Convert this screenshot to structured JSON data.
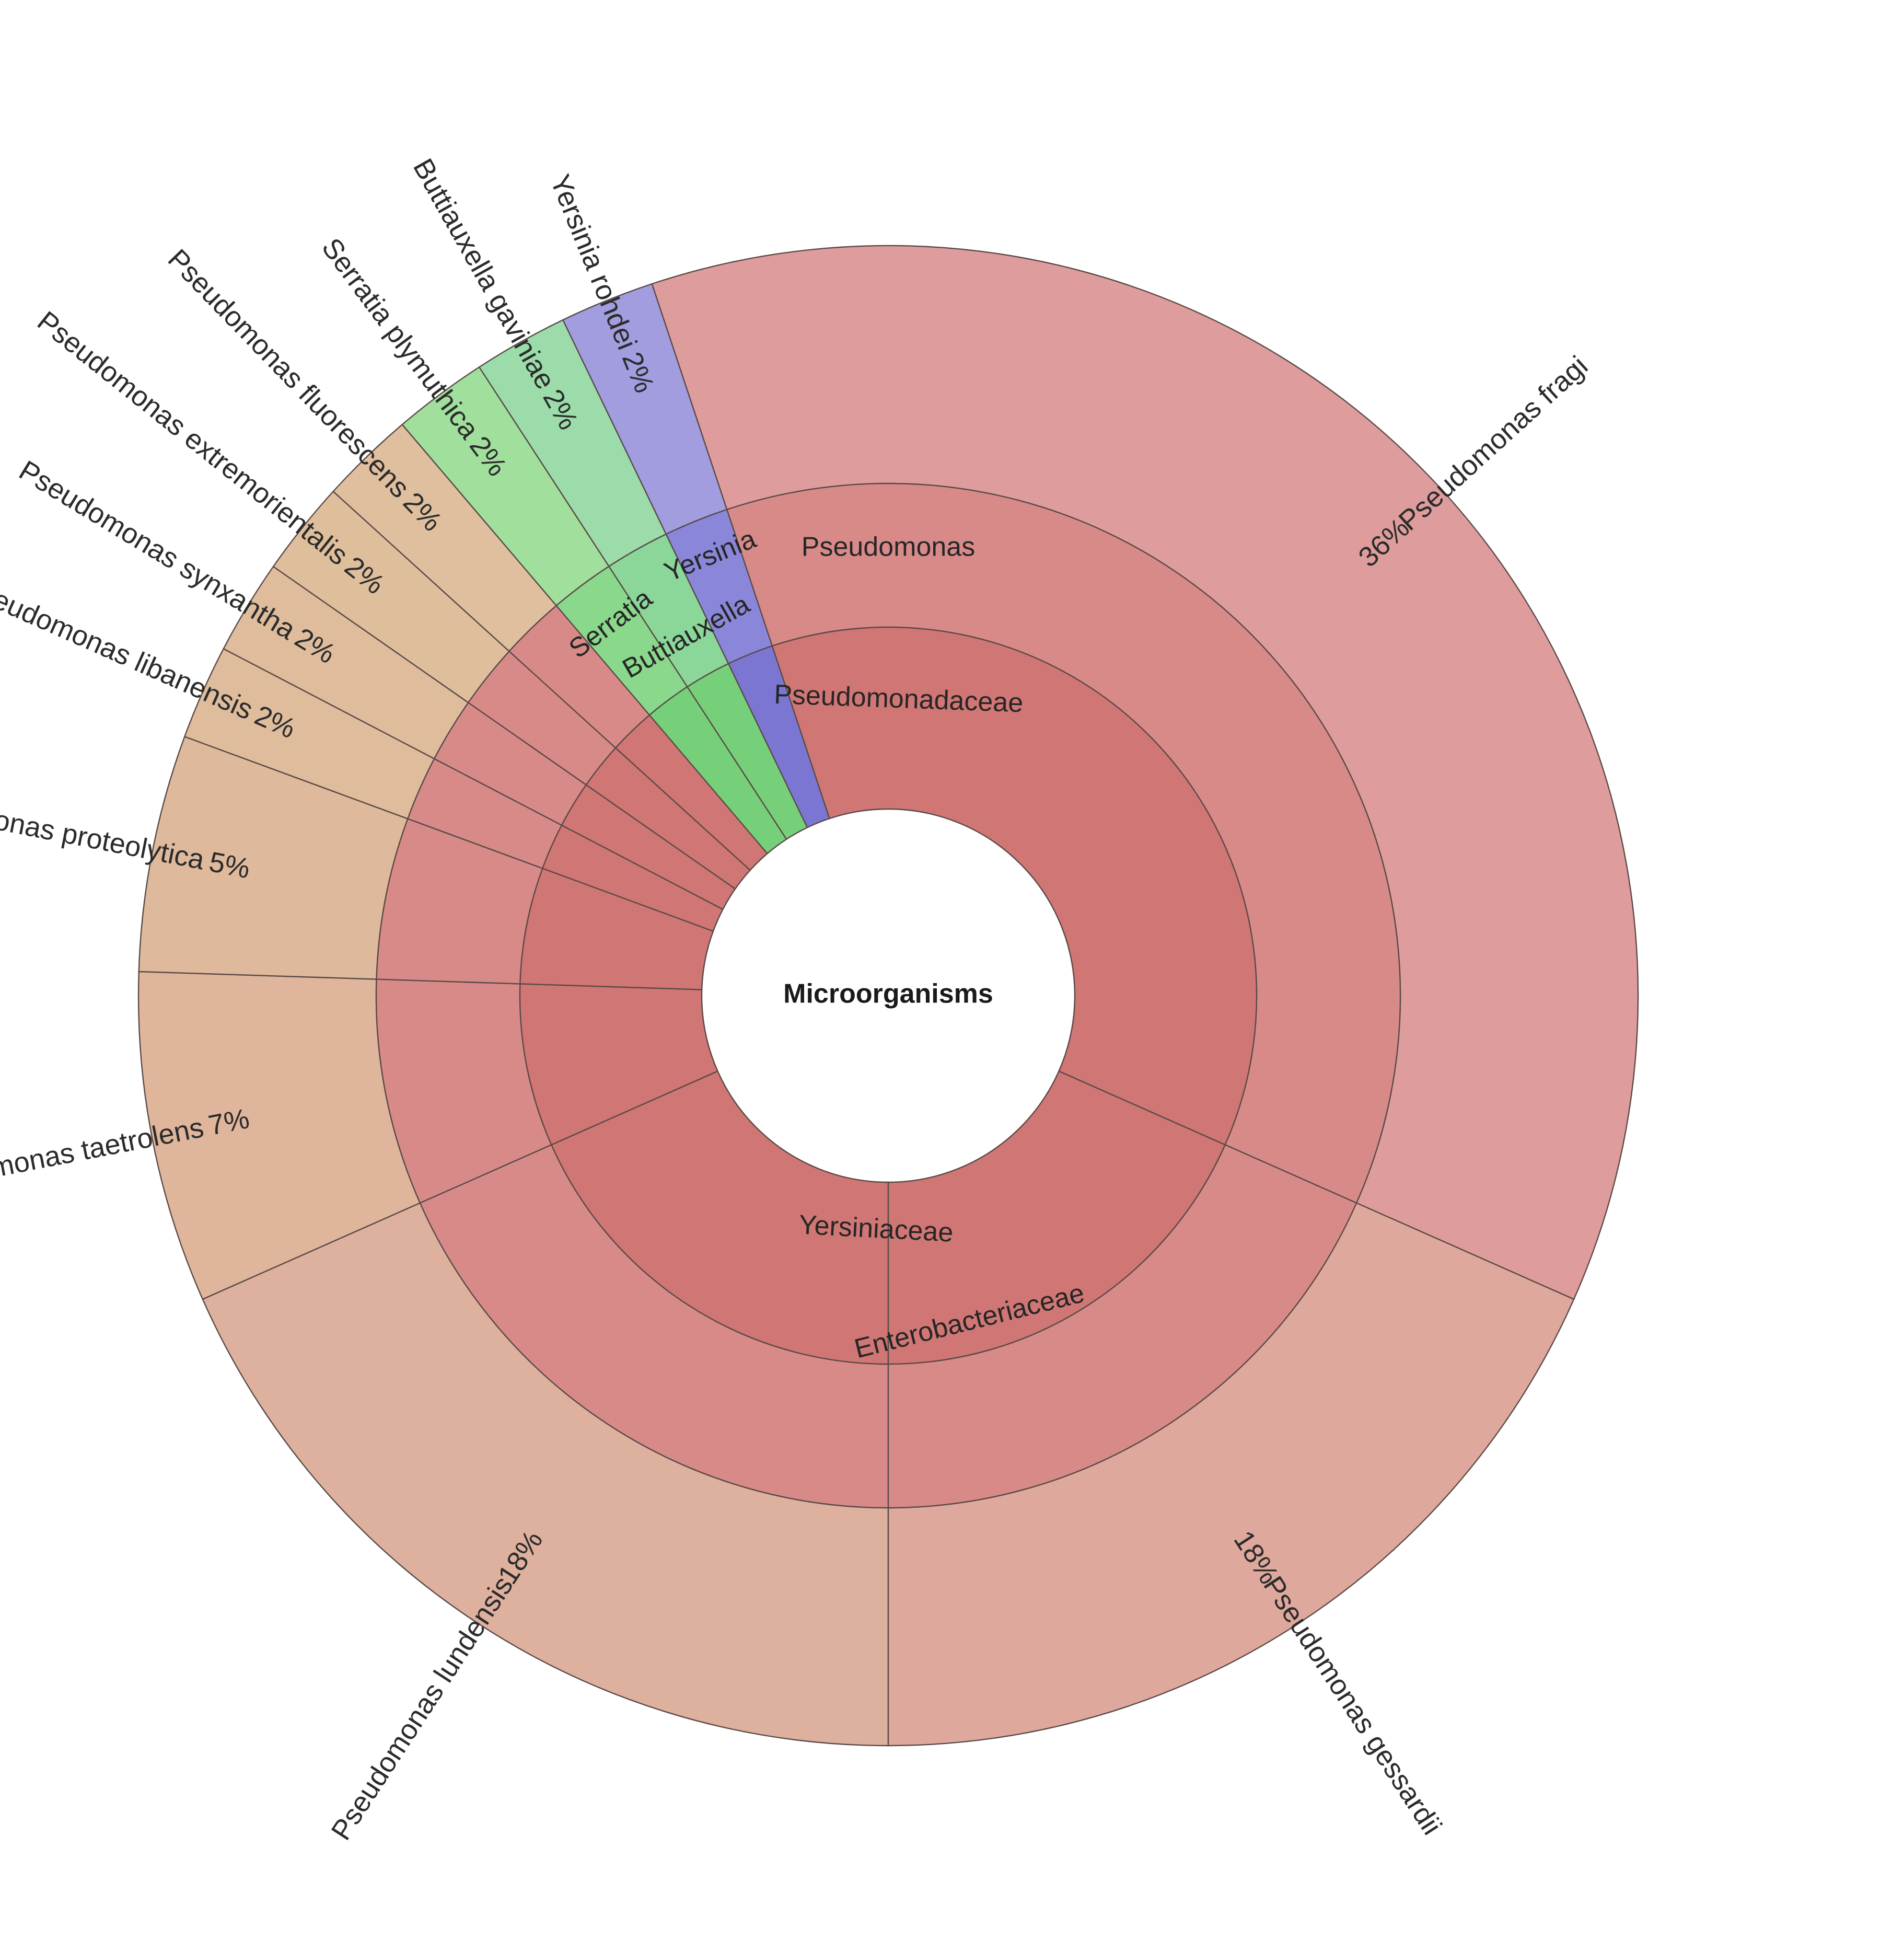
{
  "chart_data": {
    "type": "sunburst",
    "title": "",
    "root": "Microorganisms",
    "families": [
      {
        "name": "Pseudomonadaceae",
        "color": "#d07674"
      },
      {
        "name": "Yersiniaceae",
        "color": "#7a76d2"
      },
      {
        "name": "Enterobacteriaceae",
        "color": "#76d07a"
      }
    ],
    "genera": [
      {
        "name": "Pseudomonas",
        "family": "Pseudomonadaceae",
        "color": "#d88a89"
      },
      {
        "name": "Yersinia",
        "family": "Yersiniaceae",
        "color": "#8a87da"
      },
      {
        "name": "Buttiauxella",
        "family": "Enterobacteriaceae",
        "color": "#8bd699"
      },
      {
        "name": "Serratia",
        "family": "Enterobacteriaceae",
        "color": "#8ad88b"
      }
    ],
    "species": [
      {
        "name": "Pseudomonas lundensis",
        "genus": "Pseudomonas",
        "percent": 18,
        "label": "18%",
        "color": "#deb09e"
      },
      {
        "name": "Pseudomonas taetrolens",
        "genus": "Pseudomonas",
        "percent": 7,
        "label": "7%",
        "color": "#dfb69c"
      },
      {
        "name": "Pseudomonas proteolytica",
        "genus": "Pseudomonas",
        "percent": 5,
        "label": "5%",
        "color": "#dfb99b"
      },
      {
        "name": "Pseudomonas libanensis",
        "genus": "Pseudomonas",
        "percent": 2,
        "label": "2%",
        "color": "#dfbc9b"
      },
      {
        "name": "Pseudomonas synxantha",
        "genus": "Pseudomonas",
        "percent": 2,
        "label": "2%",
        "color": "#dfbd9c"
      },
      {
        "name": "Pseudomonas extremorientalis",
        "genus": "Pseudomonas",
        "percent": 2,
        "label": "2%",
        "color": "#dfbe9c"
      },
      {
        "name": "Pseudomonas fluorescens",
        "genus": "Pseudomonas",
        "percent": 2,
        "label": "2%",
        "color": "#dfbf9d"
      },
      {
        "name": "Serratia plymuthica",
        "genus": "Serratia",
        "percent": 2,
        "label": "2%",
        "color": "#a0e09c"
      },
      {
        "name": "Buttiauxella gaviniae",
        "genus": "Buttiauxella",
        "percent": 2,
        "label": "2%",
        "color": "#9cdcaa"
      },
      {
        "name": "Yersinia rohdei",
        "genus": "Yersinia",
        "percent": 2,
        "label": "2%",
        "color": "#a19ddf"
      },
      {
        "name": "Pseudomonas fragi",
        "genus": "Pseudomonas",
        "percent": 36,
        "label": "36%",
        "color": "#de9d9c"
      },
      {
        "name": "Pseudomonas gessardii",
        "genus": "Pseudomonas",
        "percent": 18,
        "label": "18%",
        "color": "#dea99c"
      }
    ]
  }
}
